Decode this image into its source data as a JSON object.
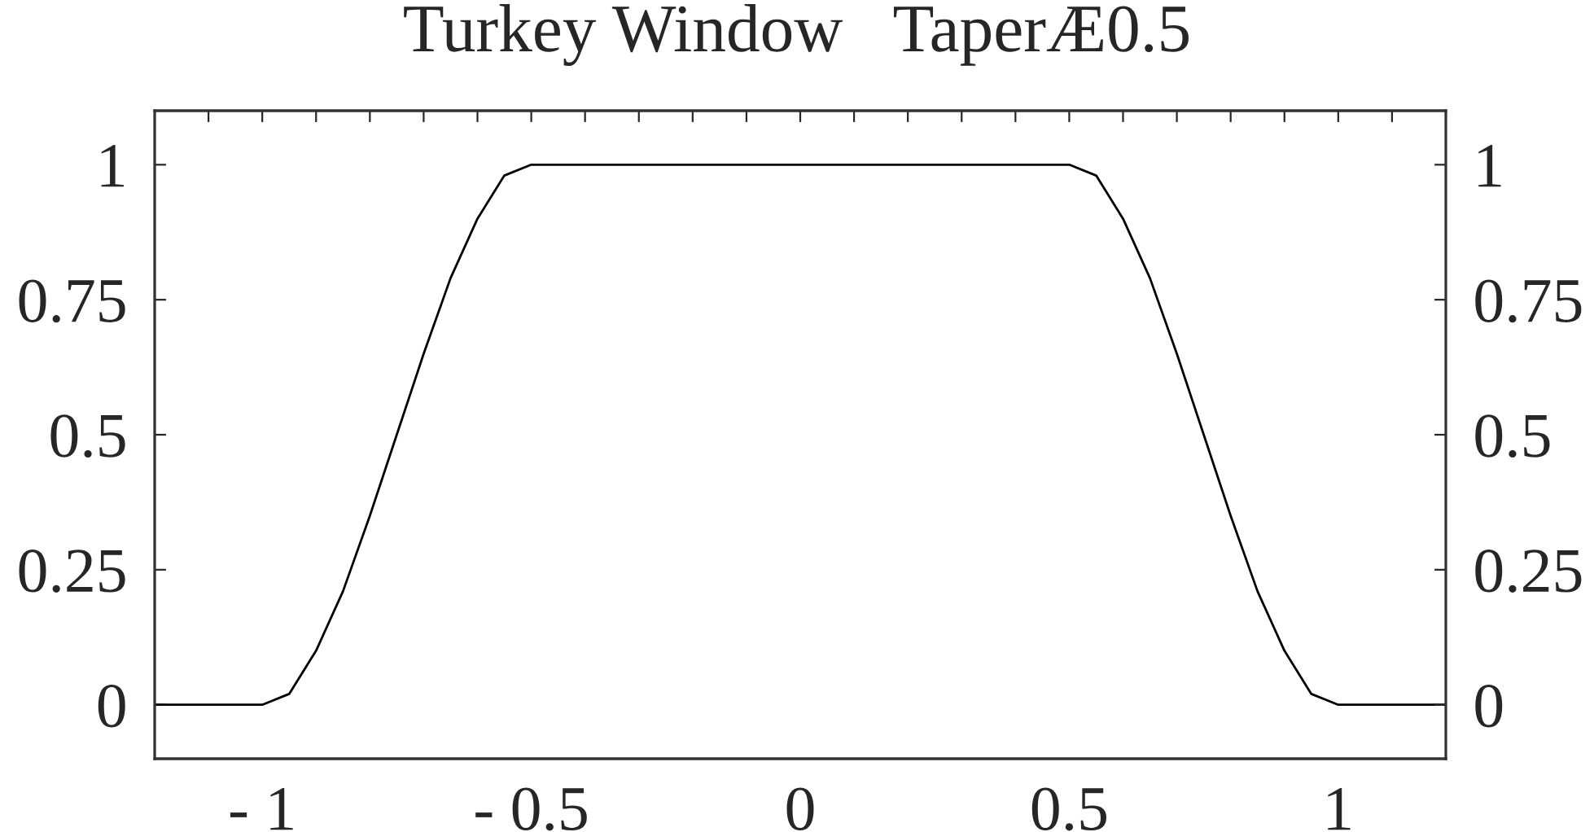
{
  "chart_data": {
    "type": "line",
    "title": "Turkey Window   TaperÆ0.5",
    "x": [
      -1.2,
      -1.0,
      -0.95,
      -0.9,
      -0.85,
      -0.8,
      -0.75,
      -0.7,
      -0.65,
      -0.6,
      -0.55,
      -0.5,
      0.5,
      0.55,
      0.6,
      0.65,
      0.7,
      0.75,
      0.8,
      0.85,
      0.9,
      0.95,
      1.0,
      1.2
    ],
    "series": [
      {
        "color": "#000000",
        "values": [
          0,
          0,
          0.02,
          0.1,
          0.21,
          0.35,
          0.5,
          0.65,
          0.79,
          0.9,
          0.98,
          1,
          1,
          0.98,
          0.9,
          0.79,
          0.65,
          0.5,
          0.35,
          0.21,
          0.1,
          0.02,
          0,
          0
        ]
      }
    ],
    "xlim": [
      -1.2,
      1.2
    ],
    "xticks": [
      {
        "value": -1.1,
        "label": null
      },
      {
        "value": -1,
        "label": "- 1"
      },
      {
        "value": -0.9,
        "label": null
      },
      {
        "value": -0.8,
        "label": null
      },
      {
        "value": -0.7,
        "label": null
      },
      {
        "value": -0.6,
        "label": null
      },
      {
        "value": -0.5,
        "label": "- 0.5"
      },
      {
        "value": -0.4,
        "label": null
      },
      {
        "value": -0.3,
        "label": null
      },
      {
        "value": -0.2,
        "label": null
      },
      {
        "value": -0.1,
        "label": null
      },
      0,
      {
        "value": 0.1,
        "label": null
      },
      {
        "value": 0.2,
        "label": null
      },
      {
        "value": 0.3,
        "label": null
      },
      {
        "value": 0.4,
        "label": null
      },
      0.5,
      {
        "value": 0.6,
        "label": null
      },
      {
        "value": 0.7,
        "label": null
      },
      {
        "value": 0.8,
        "label": null
      },
      {
        "value": 0.9,
        "label": null
      },
      1,
      {
        "value": 1.1,
        "label": null
      }
    ],
    "ylim": [
      -0.1,
      1.1
    ],
    "yticks": [
      0,
      0.25,
      0.5,
      0.75,
      1
    ],
    "y2lim": [
      -0.1,
      1.1
    ],
    "y2ticks": [
      0,
      0.25,
      0.5,
      0.75,
      1
    ],
    "grid": false,
    "marker": "none",
    "line_style": "solid"
  }
}
